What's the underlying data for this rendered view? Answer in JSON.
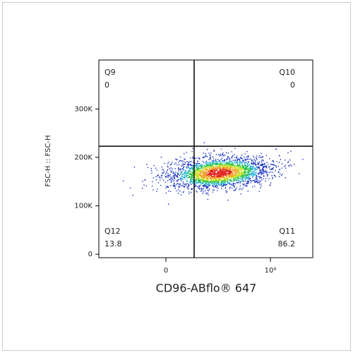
{
  "chart_data": {
    "type": "scatter",
    "x_label": "CD96-ABflo® 647",
    "y_label": "FSC-H :: FSC-H",
    "xscale": "asinh",
    "xlim": [
      -1730,
      72600
    ],
    "ylim": [
      -7000,
      401000
    ],
    "xticks": [
      0,
      {
        "value": 10000,
        "label": "10⁴"
      }
    ],
    "yticks": [
      0,
      {
        "value": 100000,
        "label": "100K"
      },
      {
        "value": 200000,
        "label": "200K"
      },
      {
        "value": 300000,
        "label": "300K"
      }
    ],
    "gates": {
      "x": 261,
      "y": 223000
    },
    "quadrants": [
      {
        "name": "Q9",
        "value": 0
      },
      {
        "name": "Q10",
        "value": 0
      },
      {
        "name": "Q12",
        "value": 13.8
      },
      {
        "name": "Q11",
        "value": 86.2
      }
    ]
  }
}
